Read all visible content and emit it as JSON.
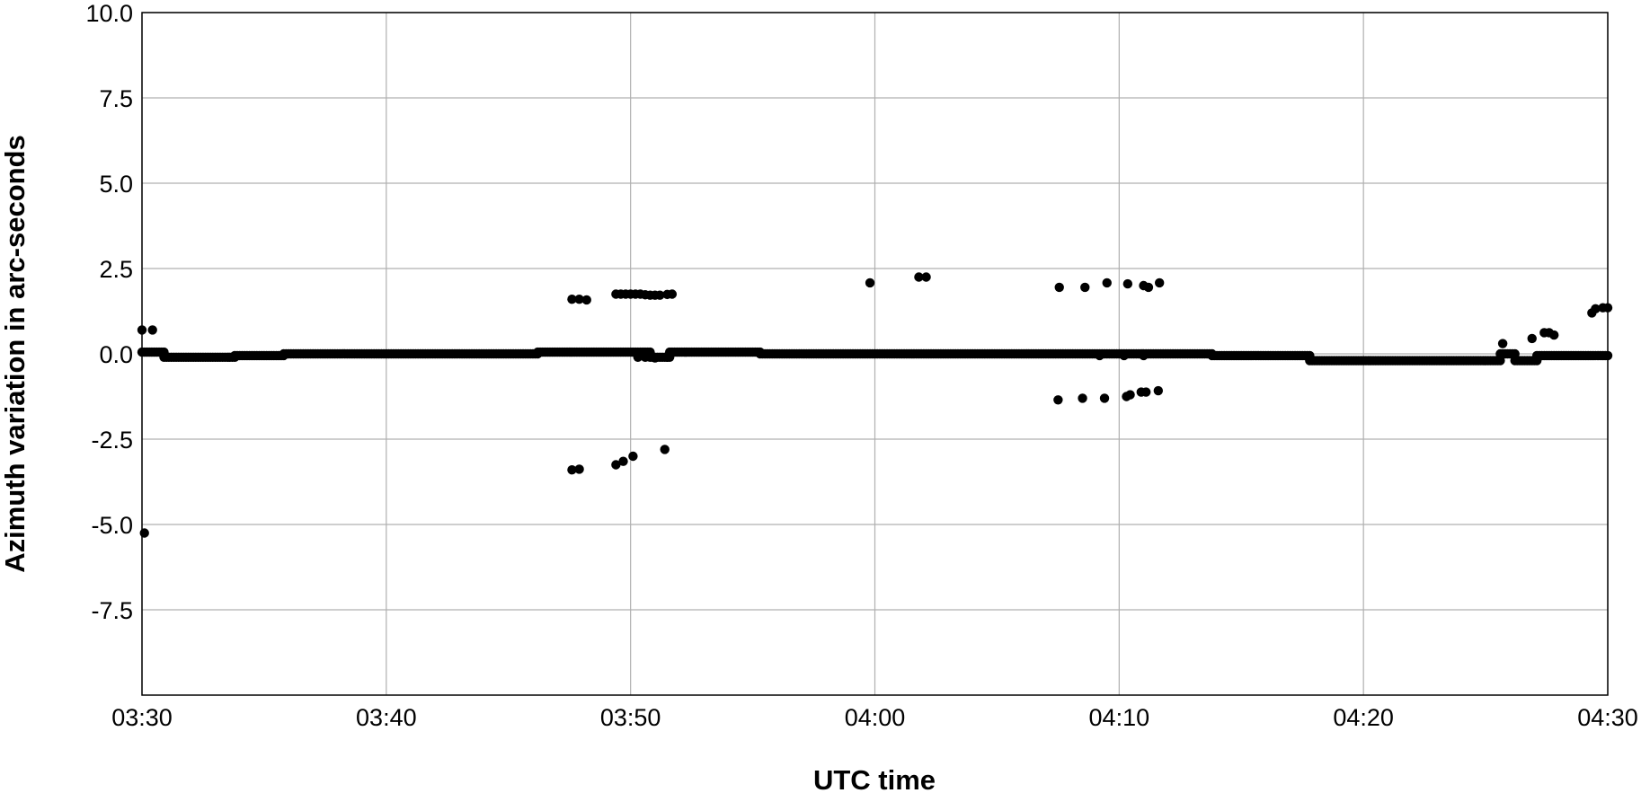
{
  "chart_data": {
    "type": "scatter",
    "title": "",
    "xlabel": "UTC time",
    "ylabel": "Azimuth variation in arc-seconds",
    "x_unit": "minutes after 03:30 UTC",
    "xlim": [
      0,
      60
    ],
    "ylim": [
      -10,
      10
    ],
    "grid": true,
    "x_ticks": [
      {
        "value": 0,
        "label": "03:30"
      },
      {
        "value": 10,
        "label": "03:40"
      },
      {
        "value": 20,
        "label": "03:50"
      },
      {
        "value": 30,
        "label": "04:00"
      },
      {
        "value": 40,
        "label": "04:10"
      },
      {
        "value": 50,
        "label": "04:20"
      },
      {
        "value": 60,
        "label": "04:30"
      }
    ],
    "y_ticks": [
      {
        "value": 10,
        "label": "10.0"
      },
      {
        "value": 7.5,
        "label": "7.5"
      },
      {
        "value": 5,
        "label": "5.0"
      },
      {
        "value": 2.5,
        "label": "2.5"
      },
      {
        "value": 0,
        "label": "0.0"
      },
      {
        "value": -2.5,
        "label": "-2.5"
      },
      {
        "value": -5,
        "label": "-5.0"
      },
      {
        "value": -7.5,
        "label": "-7.5"
      }
    ],
    "marker_color": "#000000",
    "baseline_segments": [
      {
        "from": 0,
        "to": 0.9,
        "value": 0.05
      },
      {
        "from": 0.9,
        "to": 3.8,
        "value": -0.1
      },
      {
        "from": 3.8,
        "to": 5.8,
        "value": -0.05
      },
      {
        "from": 5.8,
        "to": 16.2,
        "value": 0.0
      },
      {
        "from": 16.2,
        "to": 20.8,
        "value": 0.05
      },
      {
        "from": 20.8,
        "to": 21.6,
        "value": -0.1
      },
      {
        "from": 21.6,
        "to": 25.3,
        "value": 0.05
      },
      {
        "from": 25.3,
        "to": 43.8,
        "value": 0.0
      },
      {
        "from": 43.8,
        "to": 47.8,
        "value": -0.05
      },
      {
        "from": 47.8,
        "to": 55.6,
        "value": -0.2
      },
      {
        "from": 55.6,
        "to": 56.2,
        "value": 0.0
      },
      {
        "from": 56.2,
        "to": 57.1,
        "value": -0.2
      },
      {
        "from": 57.1,
        "to": 60,
        "value": -0.05
      }
    ],
    "points": [
      [
        0.0,
        0.7
      ],
      [
        0.43,
        0.7
      ],
      [
        0.1,
        -5.25
      ],
      [
        17.6,
        1.6
      ],
      [
        17.9,
        1.6
      ],
      [
        18.2,
        1.58
      ],
      [
        17.6,
        -3.4
      ],
      [
        17.9,
        -3.38
      ],
      [
        19.4,
        -3.25
      ],
      [
        19.7,
        -3.15
      ],
      [
        20.1,
        -3.0
      ],
      [
        21.4,
        -2.8
      ],
      [
        19.4,
        1.75
      ],
      [
        19.6,
        1.75
      ],
      [
        19.8,
        1.75
      ],
      [
        20.0,
        1.75
      ],
      [
        20.2,
        1.75
      ],
      [
        20.4,
        1.75
      ],
      [
        20.6,
        1.73
      ],
      [
        20.8,
        1.72
      ],
      [
        21.0,
        1.72
      ],
      [
        21.2,
        1.72
      ],
      [
        21.5,
        1.74
      ],
      [
        21.7,
        1.75
      ],
      [
        20.3,
        -0.1
      ],
      [
        20.6,
        -0.1
      ],
      [
        21.0,
        -0.12
      ],
      [
        21.5,
        -0.1
      ],
      [
        29.8,
        2.08
      ],
      [
        31.8,
        2.25
      ],
      [
        32.1,
        2.25
      ],
      [
        37.55,
        1.95
      ],
      [
        38.6,
        1.95
      ],
      [
        39.5,
        2.08
      ],
      [
        40.35,
        2.05
      ],
      [
        41.0,
        2.0
      ],
      [
        41.2,
        1.95
      ],
      [
        41.65,
        2.08
      ],
      [
        37.5,
        -1.35
      ],
      [
        38.5,
        -1.3
      ],
      [
        39.4,
        -1.3
      ],
      [
        40.3,
        -1.25
      ],
      [
        40.45,
        -1.2
      ],
      [
        40.9,
        -1.12
      ],
      [
        41.1,
        -1.12
      ],
      [
        41.6,
        -1.08
      ],
      [
        39.2,
        -0.05
      ],
      [
        40.2,
        -0.05
      ],
      [
        41.0,
        -0.05
      ],
      [
        55.7,
        0.3
      ],
      [
        56.9,
        0.45
      ],
      [
        57.4,
        0.62
      ],
      [
        57.6,
        0.62
      ],
      [
        57.8,
        0.55
      ],
      [
        59.35,
        1.2
      ],
      [
        59.5,
        1.32
      ],
      [
        59.8,
        1.35
      ],
      [
        60.0,
        1.35
      ]
    ]
  }
}
